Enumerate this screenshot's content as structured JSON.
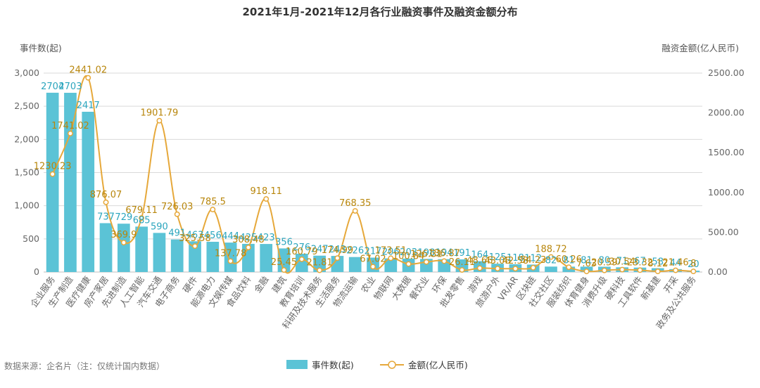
{
  "chart_data": {
    "type": "bar+line",
    "title": "2021年1月-2021年12月各行业融资事件及融资金额分布",
    "ylabel_left": "事件数(起)",
    "ylabel_right": "融资金额(亿人民币)",
    "ylim_left": [
      0,
      3000
    ],
    "ylim_right": [
      0,
      2500
    ],
    "yticks_left": [
      "0",
      "500",
      "1,000",
      "1,500",
      "2,000",
      "2,500",
      "3,000"
    ],
    "yticks_right": [
      "0.00",
      "500.00",
      "1000.00",
      "1500.00",
      "2000.00",
      "2500.00"
    ],
    "categories": [
      "企业服务",
      "生产制造",
      "医疗健康",
      "房产家居",
      "先进制造",
      "人工智能",
      "汽车交通",
      "电子商务",
      "硬件",
      "能源电力",
      "文娱传媒",
      "食品饮料",
      "金融",
      "建筑",
      "教育培训",
      "科研及技术服务",
      "生活服务",
      "物流运输",
      "农业",
      "物联网",
      "大数据",
      "餐饮业",
      "环保",
      "批发零售",
      "游戏",
      "旅游户外",
      "VR/AR",
      "区块链",
      "社交社区",
      "服装纺织",
      "体育健身",
      "消费升级",
      "硬科技",
      "工具软件",
      "新基建",
      "开采",
      "政务及公共服务"
    ],
    "series": [
      {
        "name": "事件数(起)",
        "type": "bar",
        "axis": "left",
        "color": "#5BC3D6",
        "values": [
          2704,
          2703,
          2417,
          737,
          729,
          685,
          590,
          491,
          463,
          456,
          444,
          425,
          423,
          356,
          276,
          247,
          243,
          226,
          217,
          206,
          203,
          198,
          194,
          191,
          164,
          125,
          118,
          112,
          82,
          81,
          81,
          80,
          71,
          67,
          58,
          44,
          20
        ],
        "labels": [
          "2704",
          "2703",
          "2417",
          "737",
          "729",
          "685",
          "590",
          "491",
          "463",
          "456",
          "444",
          "425",
          "423",
          "356",
          "276",
          "247",
          "243",
          "226",
          "217",
          "206",
          "203",
          "198",
          "194",
          "191",
          "164",
          "125",
          "118",
          "112",
          "82",
          "81",
          "81",
          "80",
          "71",
          "67",
          "58",
          "44",
          "20"
        ]
      },
      {
        "name": "金额(亿人民币)",
        "type": "line",
        "axis": "right",
        "color": "#E6A83A",
        "values": [
          1230.23,
          1741.02,
          2441.02,
          876.07,
          369.9,
          679.11,
          1901.79,
          726.03,
          325.58,
          785.5,
          137.78,
          308.48,
          918.11,
          25.45,
          160.79,
          21.81,
          174.99,
          768.35,
          67.02,
          173.51,
          100.84,
          126.31,
          136.87,
          26.11,
          48.66,
          43.06,
          42.58,
          54.23,
          188.72,
          60.26,
          7.63,
          20.59,
          30.54,
          23.32,
          8.12,
          21.46,
          8.0
        ],
        "labels": [
          "1230.23",
          "1741.02",
          "2441.02",
          "876.07",
          "369.9",
          "679.11",
          "1901.79",
          "726.03",
          "325.58",
          "785.5",
          "137.78",
          "308.48",
          "918.11",
          "25.45",
          "160.79",
          "21.81",
          "174.99",
          "768.35",
          "67.02",
          "173.51",
          "100.84",
          "126.31",
          "136.87",
          "26.11",
          "48.66",
          "43.06",
          "42.58",
          "54.23",
          "188.72",
          "60.26",
          "7.63",
          "20.59",
          "30.54",
          "23.32",
          "8.12",
          "21.46",
          "8"
        ]
      }
    ],
    "legend": [
      "事件数(起)",
      "金额(亿人民币)"
    ],
    "legend_position": "bottom-center",
    "source_note": "数据来源：企名片（注：仅统计国内数据）",
    "colors": {
      "bar": "#5BC3D6",
      "line": "#E6A83A",
      "line_label": "#B8860B",
      "bar_label": "#2BA5BD",
      "grid": "#D9D9D9",
      "axis_text": "#666666"
    }
  }
}
